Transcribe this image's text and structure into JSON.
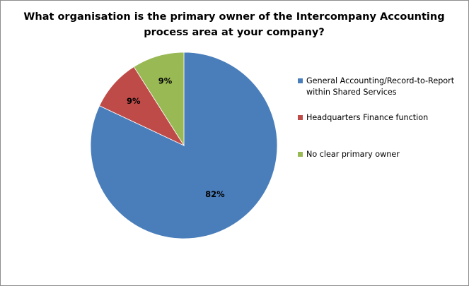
{
  "chart_data": {
    "type": "pie",
    "title": "What organisation is the primary owner of the Intercompany Accounting process area at your company?",
    "slices": [
      {
        "label": "General Accounting/Record-to-Report within Shared Services",
        "value": 82,
        "display": "82%",
        "color": "#4a7ebb"
      },
      {
        "label": "Headquarters Finance function",
        "value": 9,
        "display": "9%",
        "color": "#be4b48"
      },
      {
        "label": "No clear primary owner",
        "value": 9,
        "display": "9%",
        "color": "#98b954"
      }
    ],
    "legend_position": "right",
    "start_angle_deg": 0,
    "direction": "clockwise"
  }
}
